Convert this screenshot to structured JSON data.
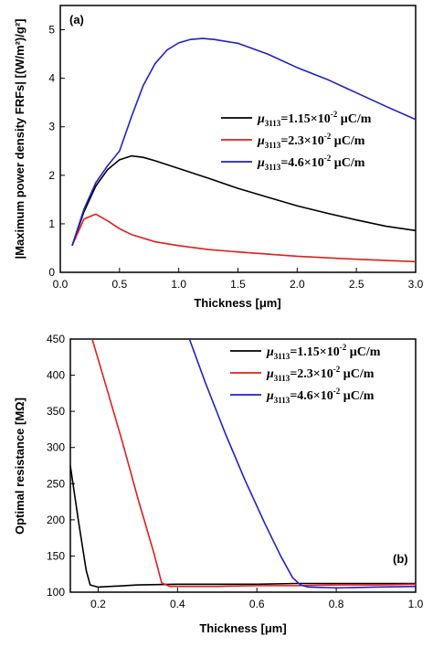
{
  "chart_data": [
    {
      "type": "line",
      "panel_label": "(a)",
      "xlabel": "Thickness [μm]",
      "ylabel": "|Maximum power density FRFs| [(W/m²)/g²]",
      "xlim": [
        0,
        3.0
      ],
      "ylim": [
        0,
        5.5
      ],
      "xticks": [
        "0.0",
        "0.5",
        "1.0",
        "1.5",
        "2.0",
        "2.5",
        "3.0"
      ],
      "yticks": [
        "0",
        "1",
        "2",
        "3",
        "4",
        "5"
      ],
      "legend_position": "center-right",
      "series": [
        {
          "name": "μ3113=1.15×10-2 μC/m",
          "legend": {
            "mu": "μ",
            "sub": "3113",
            "base": "=1.15×10",
            "exp": "-2",
            "unit": " μC/m"
          },
          "color": "#000000",
          "x": [
            0.1,
            0.2,
            0.3,
            0.4,
            0.5,
            0.6,
            0.7,
            0.8,
            1.0,
            1.25,
            1.5,
            1.75,
            2.0,
            2.25,
            2.5,
            2.75,
            3.0
          ],
          "y": [
            0.55,
            1.25,
            1.78,
            2.12,
            2.32,
            2.4,
            2.37,
            2.3,
            2.14,
            1.94,
            1.73,
            1.55,
            1.37,
            1.22,
            1.08,
            0.95,
            0.86
          ]
        },
        {
          "name": "μ3113=2.3×10-2 μC/m",
          "legend": {
            "mu": "μ",
            "sub": "3113",
            "base": "=2.3×10",
            "exp": "-2",
            "unit": " μC/m"
          },
          "color": "#e01e1e",
          "x": [
            0.1,
            0.2,
            0.3,
            0.4,
            0.5,
            0.6,
            0.8,
            1.0,
            1.25,
            1.5,
            2.0,
            2.5,
            3.0
          ],
          "y": [
            0.55,
            1.1,
            1.2,
            1.06,
            0.9,
            0.78,
            0.63,
            0.55,
            0.47,
            0.42,
            0.33,
            0.27,
            0.22
          ]
        },
        {
          "name": "μ3113=4.6×10-2 μC/m",
          "legend": {
            "mu": "μ",
            "sub": "3113",
            "base": "=4.6×10",
            "exp": "-2",
            "unit": " μC/m"
          },
          "color": "#1f1fd0",
          "x": [
            0.1,
            0.2,
            0.3,
            0.4,
            0.5,
            0.6,
            0.7,
            0.8,
            0.9,
            1.0,
            1.1,
            1.2,
            1.3,
            1.5,
            1.75,
            2.0,
            2.25,
            2.5,
            2.75,
            3.0
          ],
          "y": [
            0.55,
            1.3,
            1.85,
            2.2,
            2.5,
            3.2,
            3.85,
            4.3,
            4.58,
            4.73,
            4.8,
            4.82,
            4.8,
            4.72,
            4.5,
            4.22,
            3.98,
            3.7,
            3.42,
            3.15
          ]
        }
      ]
    },
    {
      "type": "line",
      "panel_label": "(b)",
      "xlabel": "Thickness [μm]",
      "ylabel": "Optimal resistance [MΩ]",
      "xlim": [
        0.13,
        1.0
      ],
      "ylim": [
        100,
        450
      ],
      "xticks": [
        "0.2",
        "0.4",
        "0.6",
        "0.8",
        "1.0"
      ],
      "xtick_values": [
        0.2,
        0.4,
        0.6,
        0.8,
        1.0
      ],
      "yticks": [
        "100",
        "150",
        "200",
        "250",
        "300",
        "350",
        "400",
        "450"
      ],
      "legend_position": "top-right",
      "series": [
        {
          "name": "μ3113=1.15×10-2 μC/m",
          "legend": {
            "mu": "μ",
            "sub": "3113",
            "base": "=1.15×10",
            "exp": "-2",
            "unit": " μC/m"
          },
          "color": "#000000",
          "x": [
            0.13,
            0.15,
            0.17,
            0.18,
            0.2,
            0.3,
            0.4,
            0.5,
            0.6,
            0.7,
            0.8,
            0.9,
            1.0
          ],
          "y": [
            275,
            200,
            130,
            110,
            107,
            110,
            111,
            111,
            111,
            112,
            112,
            112,
            112
          ]
        },
        {
          "name": "μ3113=2.3×10-2 μC/m",
          "legend": {
            "mu": "μ",
            "sub": "3113",
            "base": "=2.3×10",
            "exp": "-2",
            "unit": " μC/m"
          },
          "color": "#e01e1e",
          "x": [
            0.185,
            0.22,
            0.26,
            0.3,
            0.34,
            0.36,
            0.38,
            0.5,
            0.6,
            0.7,
            0.8,
            0.9,
            1.0
          ],
          "y": [
            450,
            385,
            310,
            230,
            155,
            113,
            108,
            108,
            109,
            109,
            110,
            110,
            111
          ]
        },
        {
          "name": "μ3113=4.6×10-2 μC/m",
          "legend": {
            "mu": "μ",
            "sub": "3113",
            "base": "=4.6×10",
            "exp": "-2",
            "unit": " μC/m"
          },
          "color": "#1f1fd0",
          "x": [
            0.43,
            0.47,
            0.52,
            0.57,
            0.62,
            0.66,
            0.69,
            0.71,
            0.73,
            0.8,
            0.9,
            1.0
          ],
          "y": [
            450,
            390,
            320,
            255,
            195,
            150,
            120,
            110,
            107,
            106,
            107,
            108
          ]
        }
      ]
    }
  ]
}
